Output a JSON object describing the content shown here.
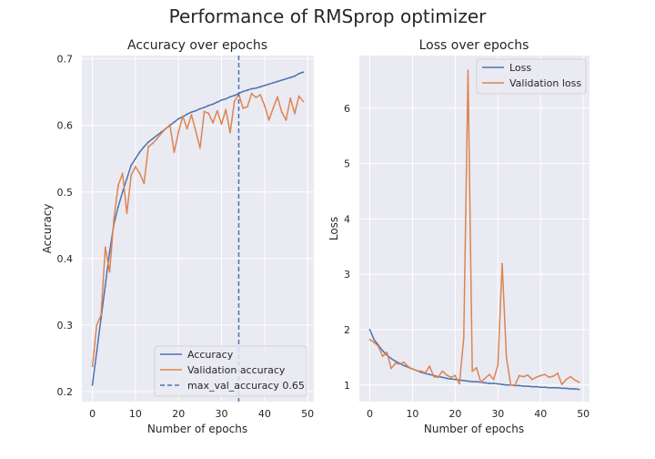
{
  "chart_data": {
    "suptitle": "Performance of RMSprop optimizer",
    "panels": [
      {
        "type": "line",
        "title": "Accuracy over epochs",
        "xlabel": "Number of epochs",
        "ylabel": "Accuracy",
        "xlim": [
          -2.45,
          51.45
        ],
        "ylim": [
          0.185,
          0.705
        ],
        "xticks": [
          0,
          10,
          20,
          30,
          40,
          50
        ],
        "yticks": [
          0.2,
          0.3,
          0.4,
          0.5,
          0.6,
          0.7
        ],
        "grid": true,
        "legend_position": "lower-right",
        "x": [
          0,
          1,
          2,
          3,
          4,
          5,
          6,
          7,
          8,
          9,
          10,
          11,
          12,
          13,
          14,
          15,
          16,
          17,
          18,
          19,
          20,
          21,
          22,
          23,
          24,
          25,
          26,
          27,
          28,
          29,
          30,
          31,
          32,
          33,
          34,
          35,
          36,
          37,
          38,
          39,
          40,
          41,
          42,
          43,
          44,
          45,
          46,
          47,
          48,
          49
        ],
        "series": [
          {
            "name": "Accuracy",
            "color": "#4c72b0",
            "style": "solid",
            "values": [
              0.21,
              0.26,
              0.31,
              0.36,
              0.41,
              0.452,
              0.478,
              0.5,
              0.52,
              0.54,
              0.55,
              0.56,
              0.568,
              0.575,
              0.58,
              0.585,
              0.59,
              0.595,
              0.6,
              0.605,
              0.61,
              0.613,
              0.617,
              0.62,
              0.622,
              0.625,
              0.627,
              0.63,
              0.632,
              0.635,
              0.638,
              0.64,
              0.643,
              0.645,
              0.648,
              0.651,
              0.653,
              0.655,
              0.656,
              0.658,
              0.66,
              0.662,
              0.664,
              0.666,
              0.668,
              0.67,
              0.672,
              0.674,
              0.678,
              0.68
            ]
          },
          {
            "name": "Validation accuracy",
            "color": "#dd8452",
            "style": "solid",
            "values": [
              0.238,
              0.3,
              0.315,
              0.417,
              0.38,
              0.46,
              0.51,
              0.528,
              0.468,
              0.525,
              0.538,
              0.528,
              0.513,
              0.568,
              0.573,
              0.58,
              0.588,
              0.595,
              0.601,
              0.56,
              0.59,
              0.614,
              0.595,
              0.616,
              0.592,
              0.566,
              0.621,
              0.618,
              0.604,
              0.622,
              0.602,
              0.624,
              0.589,
              0.636,
              0.647,
              0.626,
              0.628,
              0.648,
              0.642,
              0.646,
              0.63,
              0.608,
              0.626,
              0.643,
              0.62,
              0.608,
              0.641,
              0.618,
              0.644,
              0.636
            ]
          },
          {
            "name": "max_val_accuracy 0.65",
            "color": "#4c72b0",
            "style": "dashed",
            "vline_x": 34
          }
        ]
      },
      {
        "type": "line",
        "title": "Loss over epochs",
        "xlabel": "Number of epochs",
        "ylabel": "Loss",
        "xlim": [
          -2.45,
          51.45
        ],
        "ylim": [
          0.7,
          6.95
        ],
        "xticks": [
          0,
          10,
          20,
          30,
          40,
          50
        ],
        "yticks": [
          1,
          2,
          3,
          4,
          5,
          6
        ],
        "grid": true,
        "legend_position": "upper-right",
        "x": [
          0,
          1,
          2,
          3,
          4,
          5,
          6,
          7,
          8,
          9,
          10,
          11,
          12,
          13,
          14,
          15,
          16,
          17,
          18,
          19,
          20,
          21,
          22,
          23,
          24,
          25,
          26,
          27,
          28,
          29,
          30,
          31,
          32,
          33,
          34,
          35,
          36,
          37,
          38,
          39,
          40,
          41,
          42,
          43,
          44,
          45,
          46,
          47,
          48,
          49
        ],
        "series": [
          {
            "name": "Loss",
            "color": "#4c72b0",
            "style": "solid",
            "values": [
              2.0,
              1.82,
              1.72,
              1.62,
              1.54,
              1.48,
              1.43,
              1.39,
              1.35,
              1.32,
              1.29,
              1.26,
              1.23,
              1.21,
              1.19,
              1.17,
              1.15,
              1.14,
              1.12,
              1.11,
              1.1,
              1.09,
              1.08,
              1.07,
              1.06,
              1.06,
              1.05,
              1.04,
              1.03,
              1.03,
              1.02,
              1.01,
              1.0,
              1.0,
              0.99,
              0.99,
              0.98,
              0.98,
              0.97,
              0.97,
              0.96,
              0.96,
              0.95,
              0.95,
              0.95,
              0.94,
              0.94,
              0.93,
              0.93,
              0.92
            ]
          },
          {
            "name": "Validation loss",
            "color": "#dd8452",
            "style": "solid",
            "values": [
              1.82,
              1.77,
              1.7,
              1.52,
              1.59,
              1.3,
              1.39,
              1.38,
              1.41,
              1.33,
              1.29,
              1.26,
              1.25,
              1.22,
              1.34,
              1.15,
              1.14,
              1.25,
              1.18,
              1.14,
              1.17,
              1.02,
              1.85,
              6.68,
              1.25,
              1.31,
              1.05,
              1.12,
              1.19,
              1.1,
              1.36,
              3.19,
              1.5,
              1.0,
              1.0,
              1.17,
              1.15,
              1.18,
              1.1,
              1.14,
              1.17,
              1.19,
              1.14,
              1.16,
              1.21,
              1.01,
              1.1,
              1.15,
              1.09,
              1.05
            ]
          }
        ]
      }
    ]
  }
}
